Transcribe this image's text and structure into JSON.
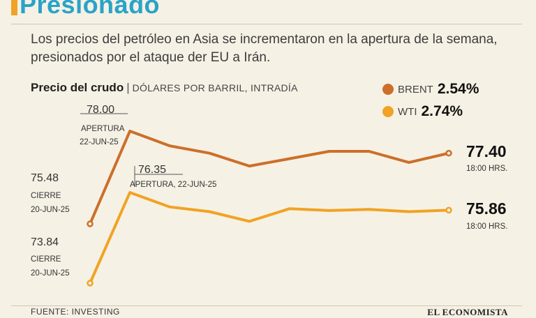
{
  "header": {
    "title": "Presionado",
    "subtitle": "Los precios del petróleo en Asia se incrementaron en la apertura de la semana, presionados por el ataque der EU a Irán."
  },
  "chart_data": {
    "type": "line",
    "title": "Precio del crudo",
    "unit": "DÓLARES POR BARRIL, INTRADÍA",
    "x": [
      0,
      1,
      2,
      3,
      4,
      5,
      6,
      7,
      8,
      9
    ],
    "series": [
      {
        "name": "BRENT",
        "change": "2.54%",
        "color": "#cc6f2a",
        "values": [
          75.48,
          78.0,
          77.6,
          77.4,
          77.05,
          77.25,
          77.45,
          77.45,
          77.15,
          77.4
        ]
      },
      {
        "name": "WTI",
        "change": "2.74%",
        "color": "#f0a324",
        "values": [
          73.84,
          76.35,
          75.95,
          75.82,
          75.55,
          75.9,
          75.85,
          75.88,
          75.82,
          75.86
        ]
      }
    ],
    "ylim": [
      73.5,
      78.6
    ],
    "grid": false,
    "legend_position": "top-right",
    "annotations": {
      "brent_start_value": "75.48",
      "brent_start_label": "CIERRE",
      "brent_start_date": "20-JUN-25",
      "brent_open_value": "78.00",
      "brent_open_label": "APERTURA",
      "brent_open_date": "22-JUN-25",
      "brent_end_value": "77.40",
      "brent_end_time": "18:00 HRS.",
      "wti_start_value": "73.84",
      "wti_start_label": "CIERRE",
      "wti_start_date": "20-JUN-25",
      "wti_open_value": "76.35",
      "wti_open_label": "APERTURA, 22-JUN-25",
      "wti_end_value": "75.86",
      "wti_end_time": "18:00 HRS."
    }
  },
  "footer": {
    "source": "FUENTE: INVESTING",
    "brand": "EL ECONOMISTA"
  }
}
